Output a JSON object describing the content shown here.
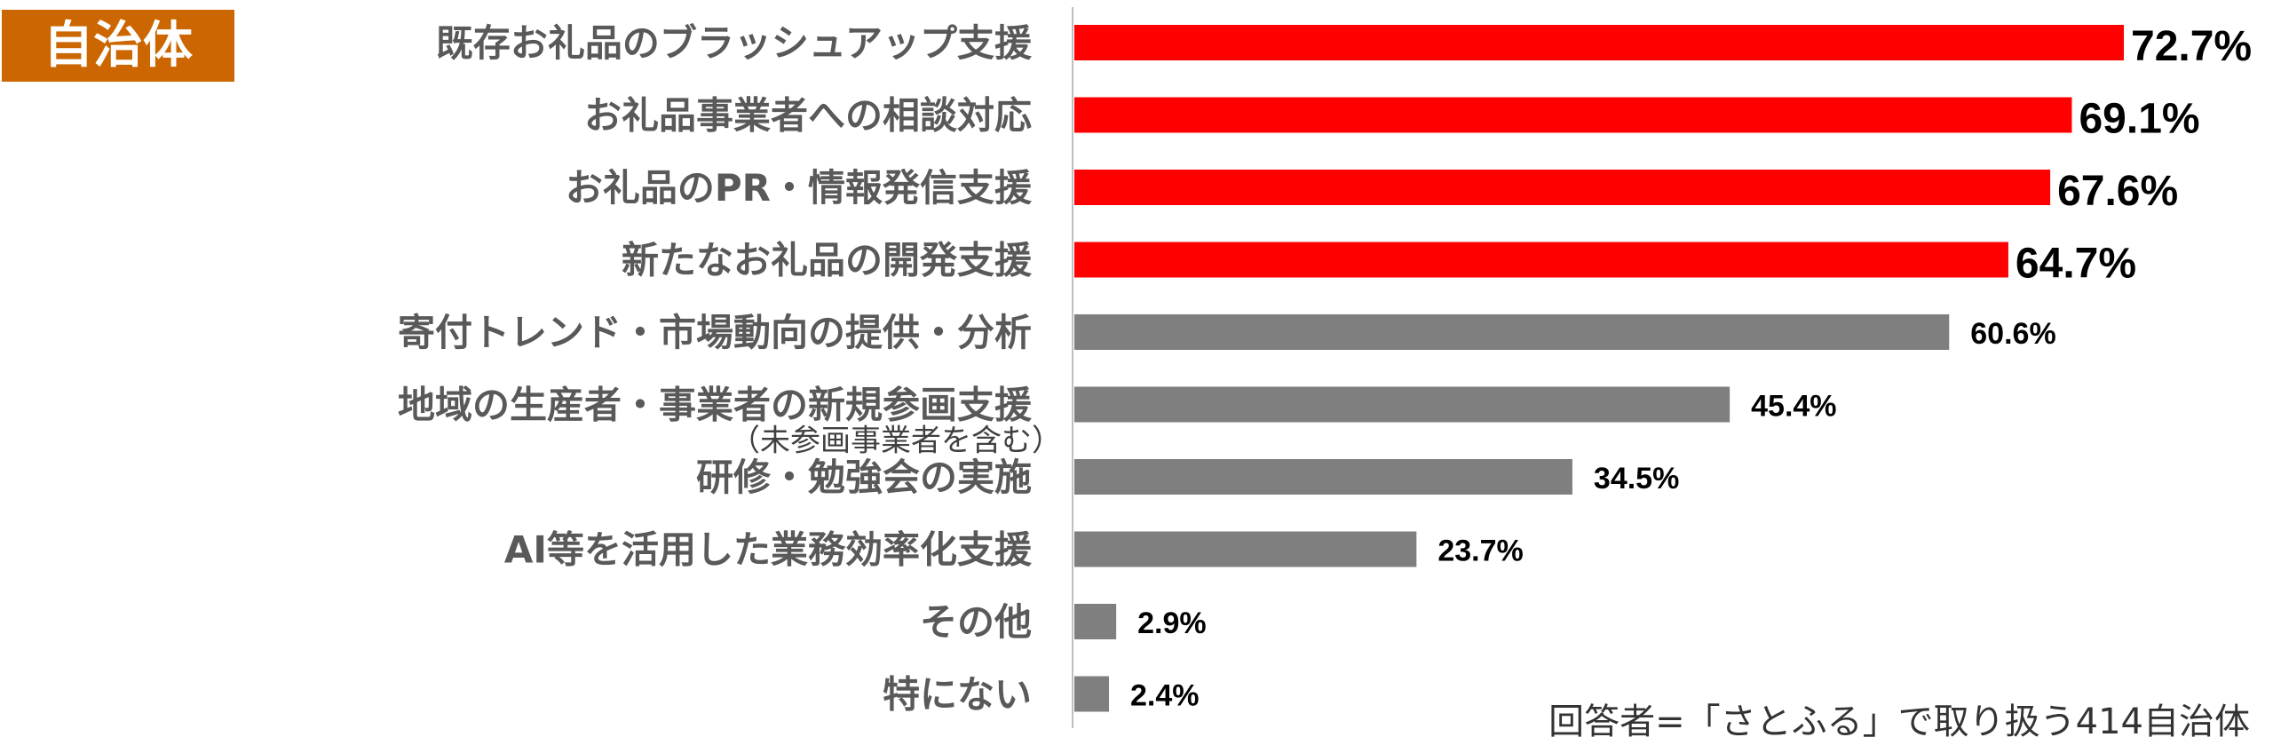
{
  "badge": {
    "label": "自治体",
    "color": "#cc6600"
  },
  "note": "回答者=「さとふる」で取り扱う414自治体",
  "chart_data": {
    "type": "bar",
    "orientation": "horizontal",
    "title": "",
    "xlabel": "",
    "ylabel": "",
    "xlim": [
      0,
      80
    ],
    "grid": false,
    "unit": "%",
    "categories": [
      "既存お礼品のブラッシュアップ支援",
      "お礼品事業者への相談対応",
      "お礼品のPR・情報発信支援",
      "新たなお礼品の開発支援",
      "寄付トレンド・市場動向の提供・分析",
      "地域の生産者・事業者の新規参画支援",
      "研修・勉強会の実施",
      "AI等を活用した業務効率化支援",
      "その他",
      "特にない"
    ],
    "sublabels": [
      "",
      "",
      "",
      "",
      "",
      "（未参画事業者を含む）",
      "",
      "",
      "",
      ""
    ],
    "values": [
      72.7,
      69.1,
      67.6,
      64.7,
      60.6,
      45.4,
      34.5,
      23.7,
      2.9,
      2.4
    ],
    "value_labels": [
      "72.7%",
      "69.1%",
      "67.6%",
      "64.7%",
      "60.6%",
      "45.4%",
      "34.5%",
      "23.7%",
      "2.9%",
      "2.4%"
    ],
    "highlighted": [
      true,
      true,
      true,
      true,
      false,
      false,
      false,
      false,
      false,
      false
    ],
    "colors": {
      "highlight": "#ff0000",
      "normal": "#7f7f7f",
      "axis": "#bfbfbf"
    }
  }
}
